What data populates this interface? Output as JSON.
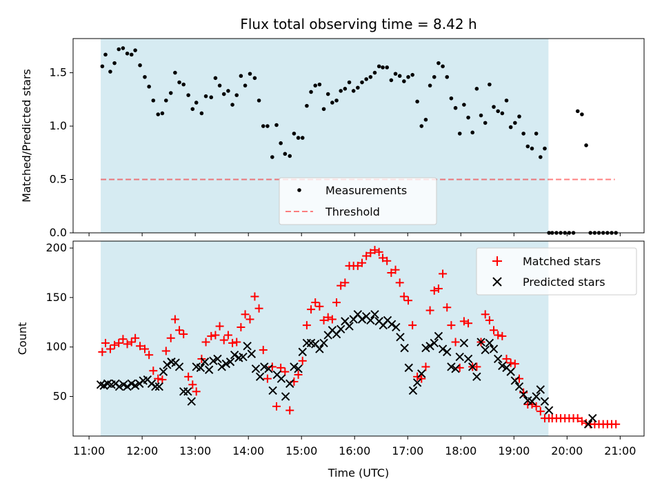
{
  "chart_data": [
    {
      "type": "scatter",
      "panel": "top",
      "title": "Flux total observing time = 8.42 h",
      "ylabel": "Matched/Predicted stars",
      "xlabel": "",
      "ylim": [
        0,
        1.82
      ],
      "yticks": [
        0.0,
        0.5,
        1.0,
        1.5
      ],
      "ytick_labels": [
        "0.0",
        "0.5",
        "1.0",
        "1.5"
      ],
      "xlim_hours": [
        10.7,
        21.45
      ],
      "shaded_span_hours": [
        11.22,
        19.65
      ],
      "shaded_color": "#add8e6",
      "threshold": {
        "name": "Threshold",
        "value": 0.5,
        "x_range_hours": [
          11.22,
          20.9
        ],
        "color": "#ff0000"
      },
      "legend": [
        "Measurements",
        "Threshold"
      ],
      "series": [
        {
          "name": "Measurements",
          "color": "#000000",
          "x": [
            11.25,
            11.31,
            11.4,
            11.48,
            11.56,
            11.64,
            11.72,
            11.8,
            11.87,
            11.96,
            12.05,
            12.13,
            12.21,
            12.3,
            12.38,
            12.45,
            12.54,
            12.62,
            12.7,
            12.78,
            12.87,
            12.95,
            13.02,
            13.12,
            13.2,
            13.3,
            13.38,
            13.46,
            13.54,
            13.62,
            13.7,
            13.78,
            13.86,
            13.94,
            14.03,
            14.12,
            14.2,
            14.28,
            14.36,
            14.45,
            14.53,
            14.61,
            14.69,
            14.78,
            14.86,
            14.94,
            15.02,
            15.1,
            15.18,
            15.26,
            15.34,
            15.42,
            15.5,
            15.58,
            15.66,
            15.74,
            15.82,
            15.9,
            15.98,
            16.06,
            16.14,
            16.22,
            16.3,
            16.38,
            16.46,
            16.53,
            16.61,
            16.69,
            16.77,
            16.85,
            16.93,
            17.01,
            17.09,
            17.18,
            17.26,
            17.34,
            17.42,
            17.5,
            17.58,
            17.66,
            17.74,
            17.82,
            17.9,
            17.98,
            18.06,
            18.14,
            18.22,
            18.3,
            18.38,
            18.46,
            18.54,
            18.62,
            18.7,
            18.78,
            18.86,
            18.94,
            19.02,
            19.1,
            19.18,
            19.26,
            19.34,
            19.42,
            19.5,
            19.58,
            19.66,
            19.72,
            19.8,
            19.88,
            19.96,
            20.04,
            20.12,
            20.2,
            20.28,
            20.36,
            20.44,
            20.52,
            20.6,
            20.68,
            20.76,
            20.84,
            20.92
          ],
          "y": [
            1.56,
            1.67,
            1.51,
            1.59,
            1.72,
            1.73,
            1.68,
            1.67,
            1.71,
            1.57,
            1.46,
            1.37,
            1.24,
            1.11,
            1.12,
            1.24,
            1.31,
            1.5,
            1.41,
            1.39,
            1.29,
            1.16,
            1.22,
            1.12,
            1.28,
            1.27,
            1.45,
            1.38,
            1.3,
            1.33,
            1.2,
            1.29,
            1.47,
            1.38,
            1.49,
            1.45,
            1.24,
            1.0,
            1.0,
            0.71,
            1.01,
            0.84,
            0.74,
            0.72,
            0.93,
            0.89,
            0.89,
            1.19,
            1.32,
            1.38,
            1.39,
            1.16,
            1.3,
            1.22,
            1.24,
            1.33,
            1.35,
            1.41,
            1.33,
            1.36,
            1.41,
            1.44,
            1.46,
            1.5,
            1.56,
            1.55,
            1.55,
            1.43,
            1.49,
            1.47,
            1.42,
            1.46,
            1.48,
            1.23,
            1.0,
            1.06,
            1.38,
            1.46,
            1.59,
            1.56,
            1.46,
            1.26,
            1.17,
            0.93,
            1.2,
            1.08,
            0.94,
            1.35,
            1.1,
            1.03,
            1.39,
            1.18,
            1.14,
            1.12,
            1.24,
            0.99,
            1.03,
            1.09,
            0.93,
            0.81,
            0.79,
            0.93,
            0.71,
            0.79,
            0,
            0,
            0,
            0,
            0,
            0,
            0,
            1.14,
            1.11,
            0.82,
            0,
            0,
            0,
            0,
            0,
            0,
            0
          ]
        }
      ]
    },
    {
      "type": "scatter",
      "panel": "bottom",
      "title": "",
      "ylabel": "Count",
      "xlabel": "Time (UTC)",
      "ylim": [
        10,
        207
      ],
      "yticks": [
        50,
        100,
        150,
        200
      ],
      "ytick_labels": [
        "50",
        "100",
        "150",
        "200"
      ],
      "xlim_hours": [
        10.7,
        21.45
      ],
      "xticks_hours": [
        11,
        12,
        13,
        14,
        15,
        16,
        17,
        18,
        19,
        20,
        21
      ],
      "xtick_labels": [
        "11:00",
        "12:00",
        "13:00",
        "14:00",
        "15:00",
        "16:00",
        "17:00",
        "18:00",
        "19:00",
        "20:00",
        "21:00"
      ],
      "shaded_span_hours": [
        11.22,
        19.65
      ],
      "shaded_color": "#add8e6",
      "legend": [
        "Matched stars",
        "Predicted stars"
      ],
      "series": [
        {
          "name": "Matched stars",
          "marker": "+",
          "color": "#ff0000",
          "x": [
            11.25,
            11.31,
            11.4,
            11.48,
            11.56,
            11.64,
            11.72,
            11.8,
            11.87,
            11.96,
            12.05,
            12.13,
            12.21,
            12.3,
            12.38,
            12.45,
            12.54,
            12.62,
            12.7,
            12.78,
            12.87,
            12.95,
            13.02,
            13.12,
            13.2,
            13.3,
            13.38,
            13.46,
            13.54,
            13.62,
            13.7,
            13.78,
            13.86,
            13.94,
            14.03,
            14.12,
            14.2,
            14.28,
            14.36,
            14.45,
            14.53,
            14.61,
            14.69,
            14.78,
            14.86,
            14.94,
            15.02,
            15.1,
            15.18,
            15.26,
            15.34,
            15.42,
            15.5,
            15.58,
            15.66,
            15.74,
            15.82,
            15.9,
            15.98,
            16.06,
            16.14,
            16.22,
            16.3,
            16.38,
            16.46,
            16.53,
            16.61,
            16.69,
            16.77,
            16.85,
            16.93,
            17.01,
            17.09,
            17.18,
            17.26,
            17.34,
            17.42,
            17.5,
            17.58,
            17.66,
            17.74,
            17.82,
            17.9,
            17.98,
            18.06,
            18.14,
            18.22,
            18.3,
            18.38,
            18.46,
            18.54,
            18.62,
            18.7,
            18.78,
            18.86,
            18.94,
            19.02,
            19.1,
            19.18,
            19.26,
            19.34,
            19.42,
            19.5,
            19.58,
            19.66,
            19.72,
            19.8,
            19.88,
            19.96,
            20.04,
            20.12,
            20.2,
            20.28,
            20.36,
            20.44,
            20.52,
            20.6,
            20.68,
            20.76,
            20.84,
            20.92
          ],
          "y": [
            95,
            104,
            98,
            102,
            104,
            108,
            103,
            105,
            109,
            101,
            98,
            92,
            76,
            68,
            67,
            96,
            109,
            128,
            117,
            113,
            70,
            62,
            55,
            88,
            105,
            111,
            112,
            121,
            107,
            112,
            104,
            105,
            120,
            133,
            128,
            151,
            139,
            97,
            68,
            80,
            40,
            79,
            75,
            36,
            65,
            72,
            86,
            122,
            138,
            145,
            141,
            127,
            130,
            128,
            145,
            162,
            165,
            182,
            182,
            182,
            185,
            192,
            195,
            198,
            196,
            190,
            187,
            175,
            178,
            165,
            151,
            147,
            122,
            70,
            68,
            80,
            137,
            157,
            159,
            174,
            140,
            122,
            105,
            79,
            126,
            124,
            80,
            80,
            105,
            133,
            127,
            117,
            112,
            111,
            88,
            84,
            83,
            68,
            54,
            42,
            42,
            40,
            35,
            28,
            28,
            28,
            28,
            28,
            28,
            28,
            28,
            28,
            25,
            23,
            22,
            22,
            22,
            22,
            22,
            22,
            22
          ]
        },
        {
          "name": "Predicted stars",
          "marker": "x",
          "color": "#000000",
          "x": [
            11.22,
            11.28,
            11.35,
            11.42,
            11.5,
            11.57,
            11.65,
            11.72,
            11.8,
            11.87,
            11.95,
            12.02,
            12.1,
            12.18,
            12.25,
            12.32,
            12.4,
            12.47,
            12.55,
            12.63,
            12.7,
            12.78,
            12.86,
            12.93,
            13.02,
            13.1,
            13.18,
            13.26,
            13.34,
            13.42,
            13.5,
            13.58,
            13.66,
            13.74,
            13.82,
            13.9,
            13.98,
            14.06,
            14.14,
            14.22,
            14.3,
            14.38,
            14.46,
            14.54,
            14.62,
            14.7,
            14.78,
            14.86,
            14.94,
            15.02,
            15.1,
            15.18,
            15.26,
            15.34,
            15.42,
            15.5,
            15.58,
            15.66,
            15.74,
            15.82,
            15.9,
            15.98,
            16.06,
            16.14,
            16.22,
            16.3,
            16.38,
            16.46,
            16.54,
            16.62,
            16.7,
            16.78,
            16.86,
            16.94,
            17.02,
            17.1,
            17.18,
            17.26,
            17.34,
            17.42,
            17.5,
            17.58,
            17.66,
            17.74,
            17.82,
            17.9,
            17.98,
            18.06,
            18.14,
            18.22,
            18.3,
            18.38,
            18.46,
            18.54,
            18.62,
            18.7,
            18.78,
            18.86,
            18.94,
            19.02,
            19.1,
            19.18,
            19.26,
            19.34,
            19.42,
            19.5,
            19.58,
            19.66,
            20.4,
            20.48
          ],
          "y": [
            62,
            61,
            63,
            62,
            63,
            60,
            62,
            60,
            63,
            61,
            63,
            66,
            67,
            63,
            60,
            60,
            75,
            82,
            85,
            84,
            80,
            55,
            55,
            45,
            80,
            79,
            85,
            77,
            86,
            88,
            80,
            83,
            85,
            92,
            89,
            90,
            101,
            93,
            78,
            70,
            80,
            78,
            56,
            72,
            68,
            50,
            63,
            80,
            78,
            95,
            104,
            104,
            103,
            98,
            104,
            112,
            117,
            113,
            118,
            126,
            121,
            128,
            133,
            128,
            131,
            127,
            133,
            126,
            122,
            127,
            123,
            120,
            110,
            99,
            79,
            56,
            64,
            73,
            99,
            101,
            104,
            111,
            98,
            95,
            80,
            78,
            90,
            104,
            88,
            80,
            70,
            105,
            97,
            104,
            98,
            88,
            81,
            79,
            75,
            66,
            60,
            52,
            46,
            45,
            50,
            57,
            45,
            36,
            22,
            28
          ]
        }
      ]
    }
  ]
}
